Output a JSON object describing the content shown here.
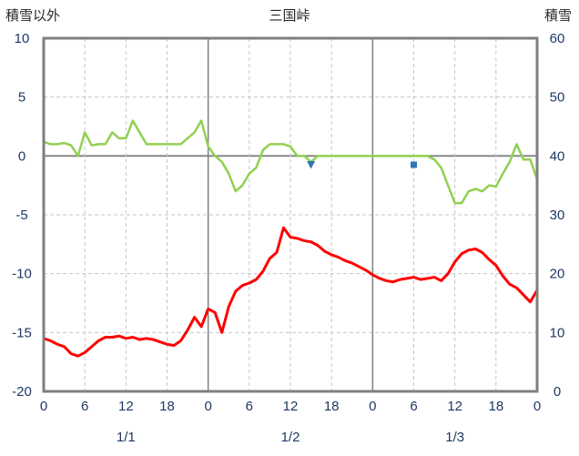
{
  "header": {
    "left_axis_title": "積雪以外",
    "chart_title": "三国峠",
    "right_axis_title": "積雪"
  },
  "chart_data": {
    "type": "line",
    "title": "三国峠",
    "x_unit": "hour",
    "x_range": [
      0,
      72
    ],
    "grid": true,
    "legend": "none",
    "left_axis": {
      "label": "積雪以外",
      "range": [
        -20,
        10
      ],
      "ticks": [
        10,
        5,
        0,
        -5,
        -10,
        -15,
        -20
      ]
    },
    "right_axis": {
      "label": "積雪",
      "range": [
        0,
        60
      ],
      "ticks": [
        60,
        50,
        40,
        30,
        20,
        10,
        0
      ]
    },
    "x_ticks": [
      {
        "hour": 0,
        "label": "0"
      },
      {
        "hour": 6,
        "label": "6"
      },
      {
        "hour": 12,
        "label": "12"
      },
      {
        "hour": 18,
        "label": "18"
      },
      {
        "hour": 24,
        "label": "0"
      },
      {
        "hour": 30,
        "label": "6"
      },
      {
        "hour": 36,
        "label": "12"
      },
      {
        "hour": 42,
        "label": "18"
      },
      {
        "hour": 48,
        "label": "0"
      },
      {
        "hour": 54,
        "label": "6"
      },
      {
        "hour": 60,
        "label": "12"
      },
      {
        "hour": 66,
        "label": "18"
      },
      {
        "hour": 72,
        "label": "0"
      }
    ],
    "day_labels": [
      {
        "hour": 12,
        "label": "1/1"
      },
      {
        "hour": 36,
        "label": "1/2"
      },
      {
        "hour": 60,
        "label": "1/3"
      }
    ],
    "grid_hours": [
      6,
      12,
      18,
      30,
      36,
      42,
      54,
      60,
      66
    ],
    "day_boundaries": [
      24,
      48
    ],
    "series": [
      {
        "name": "green-line",
        "axis": "left",
        "color": "#92d050",
        "width": 2.5,
        "x_start": 0,
        "step": 1,
        "values": [
          1.2,
          1.0,
          1.0,
          1.1,
          0.9,
          0.0,
          2.0,
          0.9,
          1.0,
          1.0,
          2.0,
          1.5,
          1.5,
          3.0,
          2.0,
          1.0,
          1.0,
          1.0,
          1.0,
          1.0,
          1.0,
          1.5,
          2.0,
          3.0,
          0.8,
          0.0,
          -0.5,
          -1.5,
          -3.0,
          -2.5,
          -1.5,
          -1.0,
          0.5,
          1.0,
          1.0,
          1.0,
          0.8,
          0.0,
          0.0,
          -0.5,
          0.0,
          0.0,
          0.0,
          0.0,
          0.0,
          0.0,
          0.0,
          0.0,
          0.0,
          0.0,
          0.0,
          0.0,
          0.0,
          0.0,
          0.0,
          0.0,
          0.0,
          -0.3,
          -1.0,
          -2.5,
          -4.0,
          -4.0,
          -3.0,
          -2.8,
          -3.0,
          -2.5,
          -2.6,
          -1.5,
          -0.5,
          1.0,
          -0.3,
          -0.3,
          -2.0
        ]
      },
      {
        "name": "red-line",
        "axis": "left",
        "color": "#ff0000",
        "width": 3,
        "x_start": 0,
        "step": 1,
        "values": [
          -15.5,
          -15.7,
          -16.0,
          -16.2,
          -16.8,
          -17.0,
          -16.7,
          -16.2,
          -15.7,
          -15.4,
          -15.4,
          -15.3,
          -15.5,
          -15.4,
          -15.6,
          -15.5,
          -15.6,
          -15.8,
          -16.0,
          -16.1,
          -15.7,
          -14.8,
          -13.7,
          -14.5,
          -13.0,
          -13.3,
          -15.0,
          -12.8,
          -11.5,
          -11.0,
          -10.8,
          -10.5,
          -9.8,
          -8.7,
          -8.2,
          -6.1,
          -6.9,
          -7.0,
          -7.2,
          -7.3,
          -7.6,
          -8.1,
          -8.4,
          -8.6,
          -8.9,
          -9.1,
          -9.4,
          -9.7,
          -10.1,
          -10.4,
          -10.6,
          -10.7,
          -10.5,
          -10.4,
          -10.3,
          -10.5,
          -10.4,
          -10.3,
          -10.6,
          -10.0,
          -9.0,
          -8.3,
          -8.0,
          -7.9,
          -8.2,
          -8.8,
          -9.3,
          -10.2,
          -10.9,
          -11.2,
          -11.8,
          -12.4,
          -11.4
        ]
      }
    ],
    "markers": [
      {
        "x": 39,
        "value": 38.5,
        "axis": "right",
        "shape": "triangle-down"
      },
      {
        "x": 54,
        "value": 38.5,
        "axis": "right",
        "shape": "square"
      }
    ],
    "marker_color": "#2e75b6",
    "colors": {
      "grid": "#c6c6c6",
      "zero_line": "#808080",
      "border": "#7f7f7f",
      "tick_text": "#1f3864",
      "header_text": "#262626"
    }
  }
}
